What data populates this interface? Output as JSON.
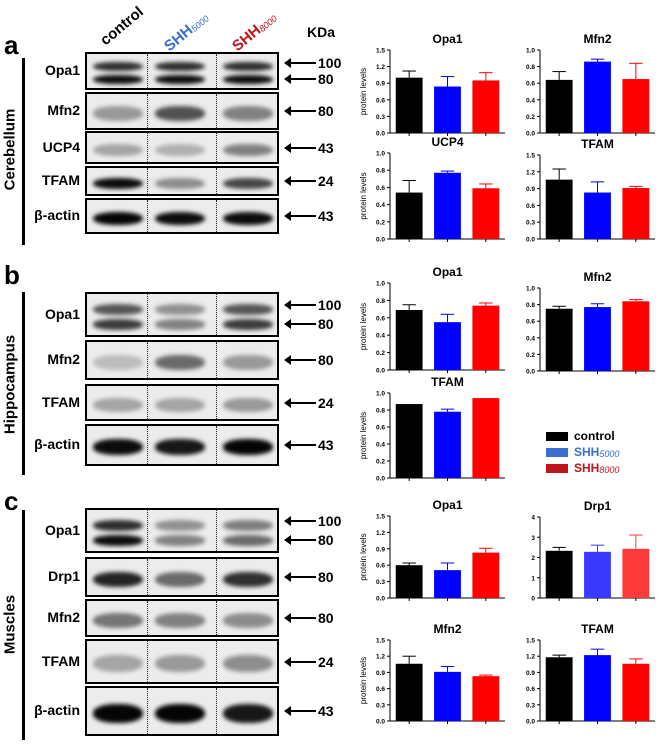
{
  "figure": {
    "columns": [
      {
        "label": "control",
        "sub": "",
        "color": "#000000"
      },
      {
        "label": "SHH",
        "sub": "5000",
        "color": "#3a6fd0"
      },
      {
        "label": "SHH",
        "sub": "8000",
        "color": "#c0141c"
      }
    ],
    "kda_label": "KDa",
    "panels": [
      {
        "letter": "a",
        "tissue": "Cerebellum",
        "blots": [
          {
            "label": "Opa1",
            "mw": [
              "100",
              "80"
            ]
          },
          {
            "label": "Mfn2",
            "mw": [
              "80"
            ]
          },
          {
            "label": "UCP4",
            "mw": [
              "43"
            ]
          },
          {
            "label": "TFAM",
            "mw": [
              "24"
            ]
          },
          {
            "label": "β-actin",
            "mw": [
              "43"
            ]
          }
        ]
      },
      {
        "letter": "b",
        "tissue": "Hippocampus",
        "blots": [
          {
            "label": "Opa1",
            "mw": [
              "100",
              "80"
            ]
          },
          {
            "label": "Mfn2",
            "mw": [
              "80"
            ]
          },
          {
            "label": "TFAM",
            "mw": [
              "24"
            ]
          },
          {
            "label": "β-actin",
            "mw": [
              "43"
            ]
          }
        ]
      },
      {
        "letter": "c",
        "tissue": "Muscles",
        "blots": [
          {
            "label": "Opa1",
            "mw": [
              "100",
              "80"
            ]
          },
          {
            "label": "Drp1",
            "mw": [
              "80"
            ]
          },
          {
            "label": "Mfn2",
            "mw": [
              "80"
            ]
          },
          {
            "label": "TFAM",
            "mw": [
              "24"
            ]
          },
          {
            "label": "β-actin",
            "mw": [
              "43"
            ]
          }
        ]
      }
    ],
    "legend": [
      {
        "label": "control",
        "sub": "",
        "color": "#000000",
        "text_color": "#000000"
      },
      {
        "label": "SHH",
        "sub": "5000",
        "color": "#3a6fd0",
        "text_color": "#3a6fd0"
      },
      {
        "label": "SHH",
        "sub": "8000",
        "color": "#c0141c",
        "text_color": "#c0141c"
      }
    ],
    "ylabel": "protein levels"
  },
  "chart_data": [
    {
      "type": "bar",
      "panel": "a",
      "title": "Opa1",
      "ylabel": "protein levels",
      "categories": [
        "control",
        "SHH5000",
        "SHH8000"
      ],
      "values": [
        1.0,
        0.84,
        0.95
      ],
      "errors": [
        0.12,
        0.18,
        0.14
      ],
      "ylim": [
        0,
        1.5
      ],
      "yticks": [
        "0.0",
        "0.3",
        "0.6",
        "0.9",
        "1.2",
        "1.5"
      ],
      "colors": [
        "#000000",
        "#0000ff",
        "#ff0000"
      ]
    },
    {
      "type": "bar",
      "panel": "a",
      "title": "Mfn2",
      "ylabel": "",
      "categories": [
        "control",
        "SHH5000",
        "SHH8000"
      ],
      "values": [
        0.64,
        0.86,
        0.65
      ],
      "errors": [
        0.1,
        0.03,
        0.19
      ],
      "ylim": [
        0,
        1.0
      ],
      "yticks": [
        "0.0",
        "0.2",
        "0.4",
        "0.6",
        "0.8",
        "1.0"
      ],
      "colors": [
        "#000000",
        "#0000ff",
        "#ff0000"
      ]
    },
    {
      "type": "bar",
      "panel": "a",
      "title": "UCP4",
      "ylabel": "protein levels",
      "categories": [
        "control",
        "SHH5000",
        "SHH8000"
      ],
      "values": [
        0.54,
        0.77,
        0.59
      ],
      "errors": [
        0.14,
        0.02,
        0.05
      ],
      "ylim": [
        0,
        1.0
      ],
      "yticks": [
        "0.0",
        "0.2",
        "0.4",
        "0.6",
        "0.8",
        "1.0"
      ],
      "colors": [
        "#000000",
        "#0000ff",
        "#ff0000"
      ]
    },
    {
      "type": "bar",
      "panel": "a",
      "title": "TFAM",
      "ylabel": "",
      "categories": [
        "control",
        "SHH5000",
        "SHH8000"
      ],
      "values": [
        1.06,
        0.83,
        0.91
      ],
      "errors": [
        0.19,
        0.19,
        0.03
      ],
      "ylim": [
        0,
        1.5
      ],
      "yticks": [
        "0.0",
        "0.3",
        "0.6",
        "0.9",
        "1.2",
        "1.5"
      ],
      "colors": [
        "#000000",
        "#0000ff",
        "#ff0000"
      ]
    },
    {
      "type": "bar",
      "panel": "b",
      "title": "Opa1",
      "ylabel": "protein levels",
      "categories": [
        "control",
        "SHH5000",
        "SHH8000"
      ],
      "values": [
        0.69,
        0.55,
        0.74
      ],
      "errors": [
        0.06,
        0.09,
        0.03
      ],
      "ylim": [
        0,
        1.0
      ],
      "yticks": [
        "0.0",
        "0.2",
        "0.4",
        "0.6",
        "0.8",
        "1.0"
      ],
      "colors": [
        "#000000",
        "#0000ff",
        "#ff0000"
      ]
    },
    {
      "type": "bar",
      "panel": "b",
      "title": "Mfn2",
      "ylabel": "",
      "categories": [
        "control",
        "SHH5000",
        "SHH8000"
      ],
      "values": [
        0.75,
        0.77,
        0.84
      ],
      "errors": [
        0.03,
        0.04,
        0.02
      ],
      "ylim": [
        0,
        1.0
      ],
      "yticks": [
        "0.0",
        "0.2",
        "0.4",
        "0.6",
        "0.8",
        "1.0"
      ],
      "colors": [
        "#000000",
        "#0000ff",
        "#ff0000"
      ]
    },
    {
      "type": "bar",
      "panel": "b",
      "title": "TFAM",
      "ylabel": "protein levels",
      "categories": [
        "control",
        "SHH5000",
        "SHH8000"
      ],
      "values": [
        0.87,
        0.78,
        0.94
      ],
      "errors": [
        0.0,
        0.03,
        0.0
      ],
      "ylim": [
        0,
        1.0
      ],
      "yticks": [
        "0.0",
        "0.2",
        "0.4",
        "0.6",
        "0.8",
        "1.0"
      ],
      "colors": [
        "#000000",
        "#0000ff",
        "#ff0000"
      ]
    },
    {
      "type": "bar",
      "panel": "c",
      "title": "Opa1",
      "ylabel": "protein levels",
      "categories": [
        "control",
        "SHH5000",
        "SHH8000"
      ],
      "values": [
        0.6,
        0.51,
        0.83
      ],
      "errors": [
        0.04,
        0.13,
        0.08
      ],
      "ylim": [
        0,
        1.5
      ],
      "yticks": [
        "0.0",
        "0.3",
        "0.6",
        "0.9",
        "1.2",
        "1.5"
      ],
      "colors": [
        "#000000",
        "#0000ff",
        "#ff0000"
      ]
    },
    {
      "type": "bar",
      "panel": "c",
      "title": "Drp1",
      "ylabel": "",
      "categories": [
        "control",
        "SHH5000",
        "SHH8000"
      ],
      "values": [
        2.33,
        2.28,
        2.43
      ],
      "errors": [
        0.17,
        0.33,
        0.68
      ],
      "ylim": [
        0,
        4
      ],
      "yticks": [
        "0",
        "1",
        "2",
        "3",
        "4"
      ],
      "colors": [
        "#000000",
        "#3a3aff",
        "#ff3a3a"
      ]
    },
    {
      "type": "bar",
      "panel": "c",
      "title": "Mfn2",
      "ylabel": "protein levels",
      "categories": [
        "control",
        "SHH5000",
        "SHH8000"
      ],
      "values": [
        1.06,
        0.91,
        0.83
      ],
      "errors": [
        0.14,
        0.1,
        0.02
      ],
      "ylim": [
        0,
        1.5
      ],
      "yticks": [
        "0.0",
        "0.3",
        "0.6",
        "0.9",
        "1.2",
        "1.5"
      ],
      "colors": [
        "#000000",
        "#0000ff",
        "#ff0000"
      ]
    },
    {
      "type": "bar",
      "panel": "c",
      "title": "TFAM",
      "ylabel": "",
      "categories": [
        "control",
        "SHH5000",
        "SHH8000"
      ],
      "values": [
        1.18,
        1.22,
        1.06
      ],
      "errors": [
        0.04,
        0.11,
        0.09
      ],
      "ylim": [
        0,
        1.5
      ],
      "yticks": [
        "0.0",
        "0.3",
        "0.6",
        "0.9",
        "1.2",
        "1.5"
      ],
      "colors": [
        "#000000",
        "#0000ff",
        "#ff0000"
      ]
    }
  ]
}
